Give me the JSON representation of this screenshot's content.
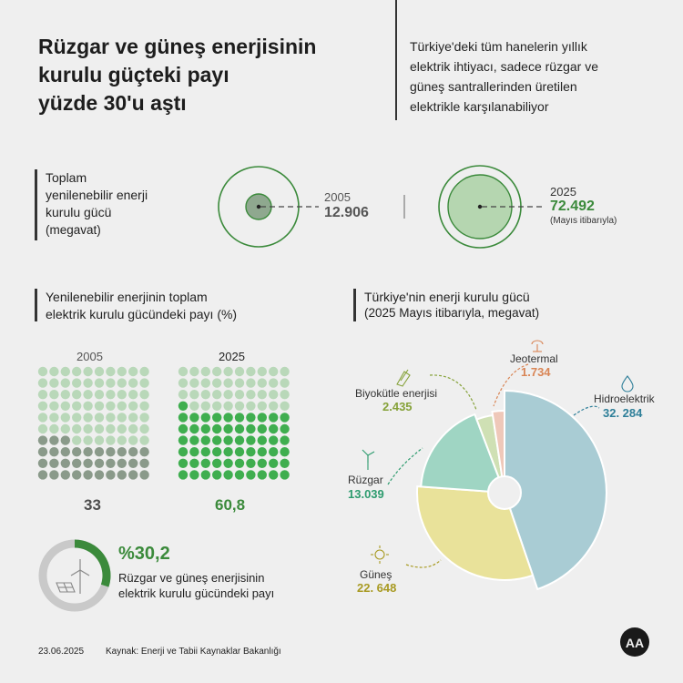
{
  "header": {
    "title": "Rüzgar ve güneş enerjisinin\nkurulu güçteki payı\nyüzde 30'u aştı",
    "subtitle": "Türkiye'deki tüm hanelerin yıllık\nelektrik ihtiyacı, sadece rüzgar ve\ngüneş santrallerinden üretilen\nelektrikle karşılanabiliyor"
  },
  "capacity": {
    "title": "Toplam\nyenilenebilir enerji\nkurulu gücü",
    "unit": "(megavat)",
    "items": [
      {
        "year": "2005",
        "value": "12.906",
        "note": ""
      },
      {
        "year": "2025",
        "value": "72.492",
        "note": "(Mayıs itibarıyla)"
      }
    ]
  },
  "share": {
    "title": "Yenilenebilir enerjinin toplam\nelektrik kurulu gücündeki payı (%)",
    "grids": [
      {
        "year": "2005",
        "value": "33"
      },
      {
        "year": "2025",
        "value": "60,8"
      }
    ],
    "highlight": {
      "value": "%30,2",
      "text": "Rüzgar ve güneş enerjisinin\nelektrik kurulu gücündeki payı"
    }
  },
  "pie": {
    "title": "Türkiye'nin enerji kurulu gücü",
    "subtitle": "(2025 Mayıs itibarıyla, megavat)",
    "slices": [
      {
        "label": "Hidroelektrik",
        "value": "32. 284",
        "color": "#a9ccd4",
        "labelColor": "#2e7f99"
      },
      {
        "label": "Güneş",
        "value": "22. 648",
        "color": "#e9e29a",
        "labelColor": "#a89a22"
      },
      {
        "label": "Rüzgar",
        "value": "13.039",
        "color": "#9fd5c3",
        "labelColor": "#2e9c6f"
      },
      {
        "label": "Biyokütle enerjisi",
        "value": "2.435",
        "color": "#cfe0b4",
        "labelColor": "#86a23a"
      },
      {
        "label": "Jeotermal",
        "value": "1.734",
        "color": "#efc8b9",
        "labelColor": "#d98555"
      }
    ]
  },
  "chart_data": [
    {
      "type": "bar",
      "categories": [
        "2005",
        "2025"
      ],
      "values": [
        12906,
        72492
      ],
      "title": "Toplam yenilenebilir enerji kurulu gücü",
      "ylabel": "(megavat)"
    },
    {
      "type": "bar",
      "categories": [
        "2005",
        "2025"
      ],
      "values": [
        33,
        60.8
      ],
      "title": "Yenilenebilir enerjinin toplam elektrik kurulu gücündeki payı (%)"
    },
    {
      "type": "pie",
      "title": "Türkiye'nin enerji kurulu gücü",
      "subtitle": "(2025 Mayıs itibarıyla, megavat)",
      "categories": [
        "Hidroelektrik",
        "Güneş",
        "Rüzgar",
        "Biyokütle enerjisi",
        "Jeotermal"
      ],
      "values": [
        32284,
        22648,
        13039,
        2435,
        1734
      ]
    },
    {
      "type": "pie",
      "title": "Rüzgar ve güneş enerjisinin elektrik kurulu gücündeki payı",
      "categories": [
        "Rüzgar ve güneş"
      ],
      "values": [
        30.2
      ]
    }
  ],
  "footer": {
    "date": "23.06.2025",
    "source": "Kaynak: Enerji ve Tabii Kaynaklar Bakanlığı",
    "logo": "AA"
  },
  "colors": {
    "green": "#3b8a3b",
    "gray_dot": "#8a9a8a",
    "light_green_dot": "#b9d8b9"
  }
}
